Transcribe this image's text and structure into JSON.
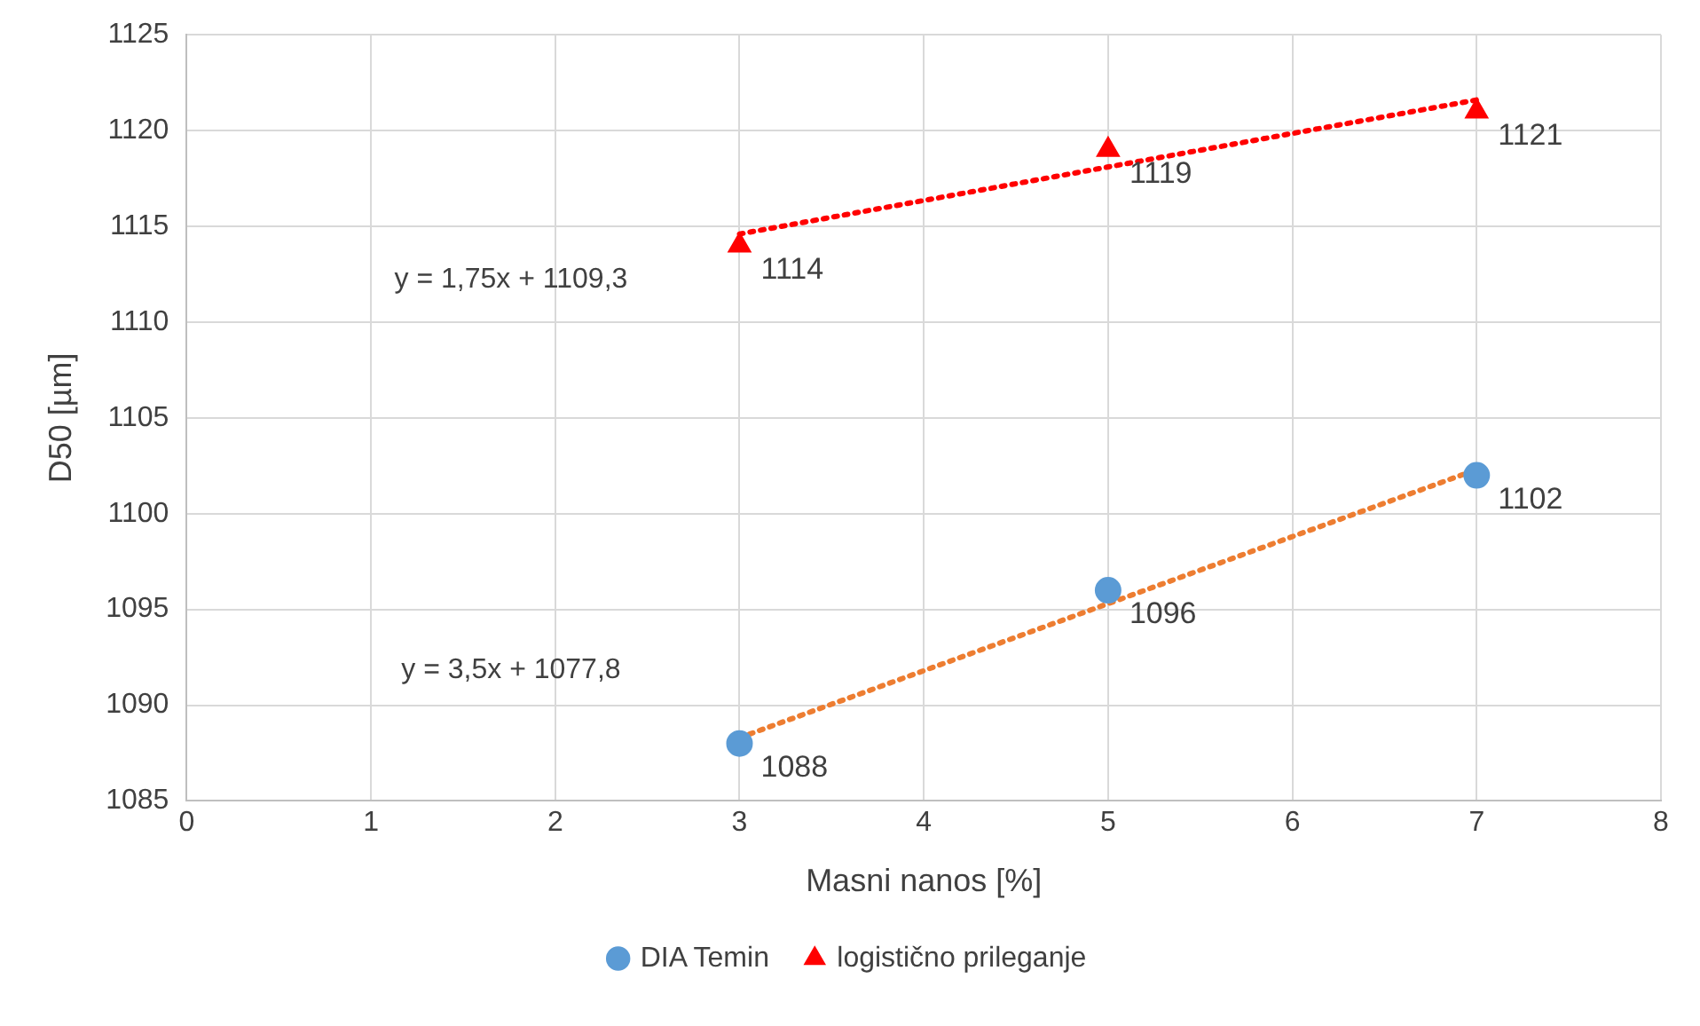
{
  "chart_data": {
    "type": "scatter",
    "xlabel": "Masni nanos [%]",
    "ylabel": "D50 [µm]",
    "xlim": [
      0,
      8
    ],
    "xticks": [
      0,
      1,
      2,
      3,
      4,
      5,
      6,
      7,
      8
    ],
    "ylim": [
      1085,
      1125
    ],
    "yticks": [
      1085,
      1090,
      1095,
      1100,
      1105,
      1110,
      1115,
      1120,
      1125
    ],
    "grid": true,
    "legend": "bottom",
    "series": [
      {
        "name": "DIA Temin",
        "type": "scatter",
        "marker": "circle",
        "color": "#5b9bd5",
        "x": [
          3,
          5,
          7
        ],
        "values": [
          1088,
          1096,
          1102
        ],
        "value_labels": [
          "1088",
          "1096",
          "1102"
        ]
      },
      {
        "name": "logistično prileganje",
        "type": "scatter",
        "marker": "triangle",
        "color": "#ff0000",
        "x": [
          3,
          5,
          7
        ],
        "values": [
          1114,
          1119,
          1121
        ],
        "value_labels": [
          "1114",
          "1119",
          "1121"
        ]
      },
      {
        "type": "line",
        "marker": "none",
        "line_style": "dotted",
        "color": "#ed7d31",
        "x": [
          3,
          7
        ],
        "values": [
          1088.3,
          1102.3
        ]
      },
      {
        "type": "line",
        "marker": "none",
        "line_style": "dotted",
        "color": "#ff0000",
        "x": [
          3,
          7
        ],
        "values": [
          1114.6,
          1121.6
        ]
      }
    ],
    "annotations": [
      "y = 1,75x + 1109,3",
      "y = 3,5x + 1077,8"
    ]
  }
}
